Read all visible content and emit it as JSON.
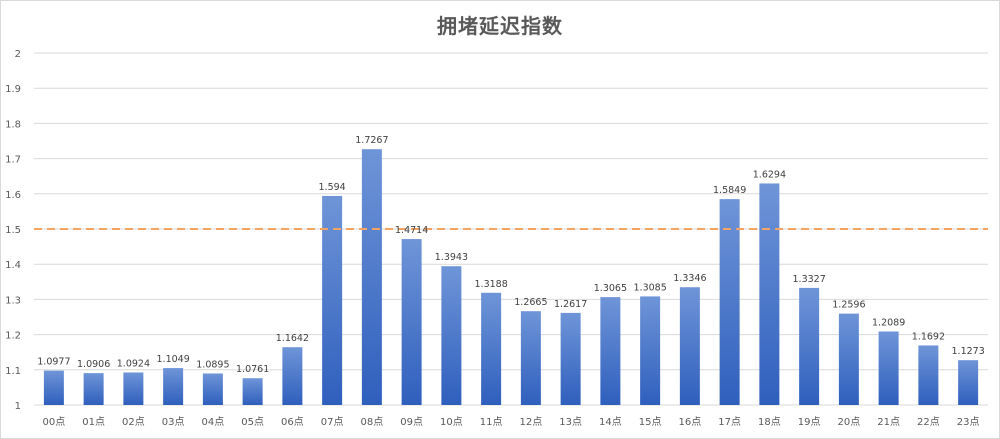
{
  "chart_data": {
    "type": "bar",
    "title": "拥堵延迟指数",
    "xlabel": "",
    "ylabel": "",
    "ylim": [
      1,
      2
    ],
    "yticks": [
      "1",
      "1.1",
      "1.2",
      "1.3",
      "1.4",
      "1.5",
      "1.6",
      "1.7",
      "1.8",
      "1.9",
      "2"
    ],
    "grid": true,
    "categories": [
      "00点",
      "01点",
      "02点",
      "03点",
      "04点",
      "05点",
      "06点",
      "07点",
      "08点",
      "09点",
      "10点",
      "11点",
      "12点",
      "13点",
      "14点",
      "15点",
      "16点",
      "17点",
      "18点",
      "19点",
      "20点",
      "21点",
      "22点",
      "23点"
    ],
    "values": [
      1.0977,
      1.0906,
      1.0924,
      1.1049,
      1.0895,
      1.0761,
      1.1642,
      1.594,
      1.7267,
      1.4714,
      1.3943,
      1.3188,
      1.2665,
      1.2617,
      1.3065,
      1.3085,
      1.3346,
      1.5849,
      1.6294,
      1.3327,
      1.2596,
      1.2089,
      1.1692,
      1.1273
    ],
    "value_labels": [
      "1.0977",
      "1.0906",
      "1.0924",
      "1.1049",
      "1.0895",
      "1.0761",
      "1.1642",
      "1.594",
      "1.7267",
      "1.4714",
      "1.3943",
      "1.3188",
      "1.2665",
      "1.2617",
      "1.3065",
      "1.3085",
      "1.3346",
      "1.5849",
      "1.6294",
      "1.3327",
      "1.2596",
      "1.2089",
      "1.1692",
      "1.1273"
    ],
    "highlight_index": 8,
    "reference_line": {
      "value": 1.5,
      "style": "dashed"
    },
    "colors": {
      "bar_top": "#6f95d8",
      "bar_bottom": "#2f5fbd",
      "reference_line": "#f4a460",
      "highlight_label": "#e8322a",
      "grid": "#d9d9d9"
    }
  }
}
